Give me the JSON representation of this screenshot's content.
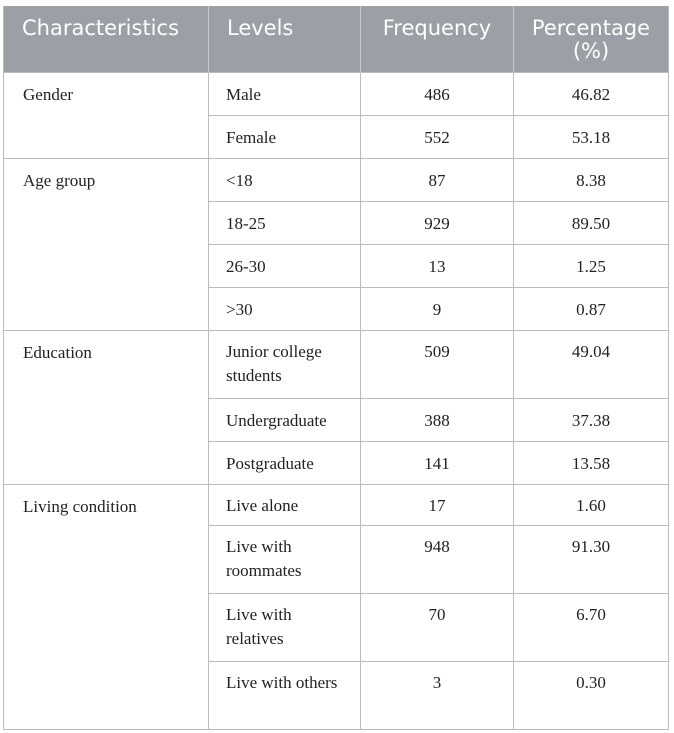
{
  "table": {
    "headers": [
      "Characteristics",
      "Levels",
      "Frequency",
      "Percentage (%)"
    ],
    "header_line1_pct": "Percentage",
    "header_line2_pct": "(%)",
    "groups": [
      {
        "characteristic": "Gender",
        "rows": [
          {
            "level": "Male",
            "frequency": "486",
            "percentage": "46.82"
          },
          {
            "level": "Female",
            "frequency": "552",
            "percentage": "53.18"
          }
        ]
      },
      {
        "characteristic": "Age group",
        "rows": [
          {
            "level": "<18",
            "frequency": "87",
            "percentage": "8.38"
          },
          {
            "level": "18-25",
            "frequency": "929",
            "percentage": "89.50"
          },
          {
            "level": "26-30",
            "frequency": "13",
            "percentage": "1.25"
          },
          {
            "level": ">30",
            "frequency": "9",
            "percentage": "0.87"
          }
        ]
      },
      {
        "characteristic": "Education",
        "rows": [
          {
            "level": "Junior college students",
            "frequency": "509",
            "percentage": "49.04"
          },
          {
            "level": "Undergraduate",
            "frequency": "388",
            "percentage": "37.38"
          },
          {
            "level": "Postgraduate",
            "frequency": "141",
            "percentage": "13.58"
          }
        ]
      },
      {
        "characteristic": "Living condition",
        "rows": [
          {
            "level": "Live alone",
            "frequency": "17",
            "percentage": "1.60"
          },
          {
            "level": "Live with roommates",
            "frequency": "948",
            "percentage": "91.30"
          },
          {
            "level": "Live with relatives",
            "frequency": "70",
            "percentage": "6.70"
          },
          {
            "level": "Live with others",
            "frequency": "3",
            "percentage": "0.30"
          }
        ]
      }
    ]
  }
}
